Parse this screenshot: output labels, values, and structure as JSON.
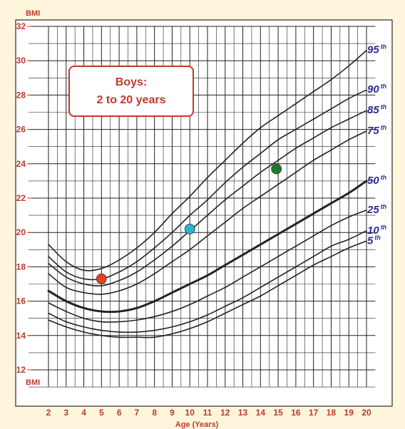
{
  "chart_data": {
    "type": "line",
    "title_box": {
      "line1": "Boys:",
      "line2": "2 to 20 years"
    },
    "ylabel_top": "BMI",
    "ylabel_bottom": "BMI",
    "xlabel": "Age (Years)",
    "xlim": [
      2,
      20.5
    ],
    "ylim": [
      11,
      32
    ],
    "x_ticks": [
      2,
      3,
      4,
      5,
      6,
      7,
      8,
      9,
      10,
      11,
      12,
      13,
      14,
      15,
      16,
      17,
      18,
      19,
      20
    ],
    "y_ticks": [
      12,
      14,
      16,
      18,
      20,
      22,
      24,
      26,
      28,
      30,
      32
    ],
    "x": [
      2,
      3,
      4,
      5,
      6,
      7,
      8,
      9,
      10,
      11,
      12,
      13,
      14,
      15,
      16,
      17,
      18,
      19,
      20
    ],
    "series": [
      {
        "name": "95",
        "bold": false,
        "values": [
          19.3,
          18.3,
          17.8,
          17.9,
          18.4,
          19.1,
          20.0,
          21.1,
          22.1,
          23.2,
          24.2,
          25.2,
          26.1,
          26.8,
          27.5,
          28.2,
          28.9,
          29.7,
          30.6
        ]
      },
      {
        "name": "90",
        "bold": false,
        "values": [
          18.6,
          17.7,
          17.3,
          17.3,
          17.7,
          18.3,
          19.1,
          20.0,
          21.0,
          21.9,
          22.9,
          23.8,
          24.6,
          25.4,
          26.0,
          26.6,
          27.2,
          27.8,
          28.3
        ]
      },
      {
        "name": "85",
        "bold": false,
        "values": [
          18.2,
          17.4,
          17.0,
          16.9,
          17.2,
          17.7,
          18.4,
          19.2,
          20.1,
          21.0,
          21.9,
          22.7,
          23.5,
          24.2,
          24.9,
          25.5,
          26.1,
          26.6,
          27.1
        ]
      },
      {
        "name": "75",
        "bold": false,
        "values": [
          17.6,
          16.8,
          16.5,
          16.4,
          16.6,
          17.0,
          17.6,
          18.3,
          19.0,
          19.8,
          20.6,
          21.4,
          22.1,
          22.8,
          23.5,
          24.2,
          24.8,
          25.4,
          25.9
        ]
      },
      {
        "name": "50",
        "bold": true,
        "values": [
          16.6,
          16.0,
          15.6,
          15.4,
          15.4,
          15.6,
          16.0,
          16.5,
          17.0,
          17.5,
          18.1,
          18.7,
          19.3,
          19.9,
          20.5,
          21.1,
          21.7,
          22.3,
          23.0
        ]
      },
      {
        "name": "25",
        "bold": false,
        "values": [
          15.9,
          15.4,
          15.0,
          14.8,
          14.8,
          14.9,
          15.1,
          15.4,
          15.8,
          16.3,
          16.8,
          17.4,
          18.0,
          18.6,
          19.2,
          19.8,
          20.4,
          20.9,
          21.3
        ]
      },
      {
        "name": "10",
        "bold": false,
        "values": [
          15.3,
          14.8,
          14.5,
          14.3,
          14.2,
          14.2,
          14.3,
          14.5,
          14.8,
          15.2,
          15.7,
          16.2,
          16.8,
          17.4,
          18.0,
          18.6,
          19.2,
          19.6,
          20.1
        ]
      },
      {
        "name": "5",
        "bold": false,
        "values": [
          14.9,
          14.5,
          14.2,
          14.0,
          13.9,
          13.9,
          13.9,
          14.1,
          14.4,
          14.8,
          15.3,
          15.8,
          16.3,
          16.9,
          17.5,
          18.1,
          18.6,
          19.1,
          19.5
        ]
      }
    ],
    "percentile_suffix": "th",
    "points": [
      {
        "x": 5.0,
        "y": 17.3,
        "color": "#e8401e"
      },
      {
        "x": 10.0,
        "y": 20.2,
        "color": "#29b6c8"
      },
      {
        "x": 14.9,
        "y": 23.7,
        "color": "#1d7a2c"
      }
    ],
    "colors": {
      "background": "#fdf6dc",
      "tick_text": "#c0392b",
      "percentile_text": "#2c2c8c",
      "grid": "#222222",
      "box_stroke": "#c0392b"
    }
  }
}
